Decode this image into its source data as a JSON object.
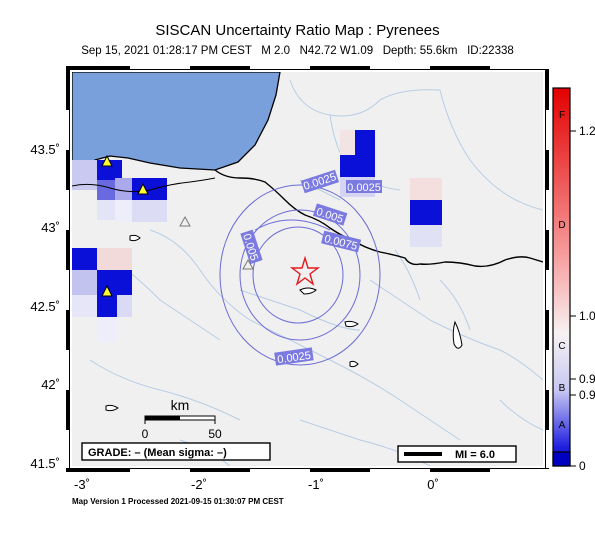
{
  "title": "SISCAN Uncertainty Ratio Map : Pyrenees",
  "subtitle": "Sep 15, 2021 01:28:17 PM CEST   M 2.0   N42.72 W1.09   Depth: 55.6km   ID:22338",
  "footer": "Map Version 1 Processed 2021-09-15 01:30:07 PM CEST",
  "map": {
    "lat_ticks": [
      "43.5˚",
      "43˚",
      "42.5˚",
      "42˚",
      "41.5˚"
    ],
    "lon_ticks": [
      "-3˚",
      "-2˚",
      "-1˚",
      "0˚"
    ],
    "contour_labels": [
      "0.0025",
      "0.0025",
      "0.005",
      "0.0075",
      "0.005",
      "0.0025"
    ],
    "scale_bar": {
      "unit": "km",
      "ticks": [
        "0",
        "50"
      ]
    },
    "grade_box": "GRADE: – (Mean sigma: –)",
    "mi_box": "MI = 6.0"
  },
  "colorbar": {
    "grade_letters": [
      "F",
      "D",
      "C",
      "B",
      "A"
    ],
    "values": [
      "1.2",
      "1.0",
      "0.9",
      "0.9",
      "0"
    ]
  },
  "colors": {
    "sea": "#7aa0dc",
    "land": "#f0f0f0",
    "rivers": "#b7cde6",
    "contours": "#6b6bd6",
    "epicenter": "#e41a1c",
    "station": "#ffff33",
    "cell_dark": "#0a10d8"
  }
}
